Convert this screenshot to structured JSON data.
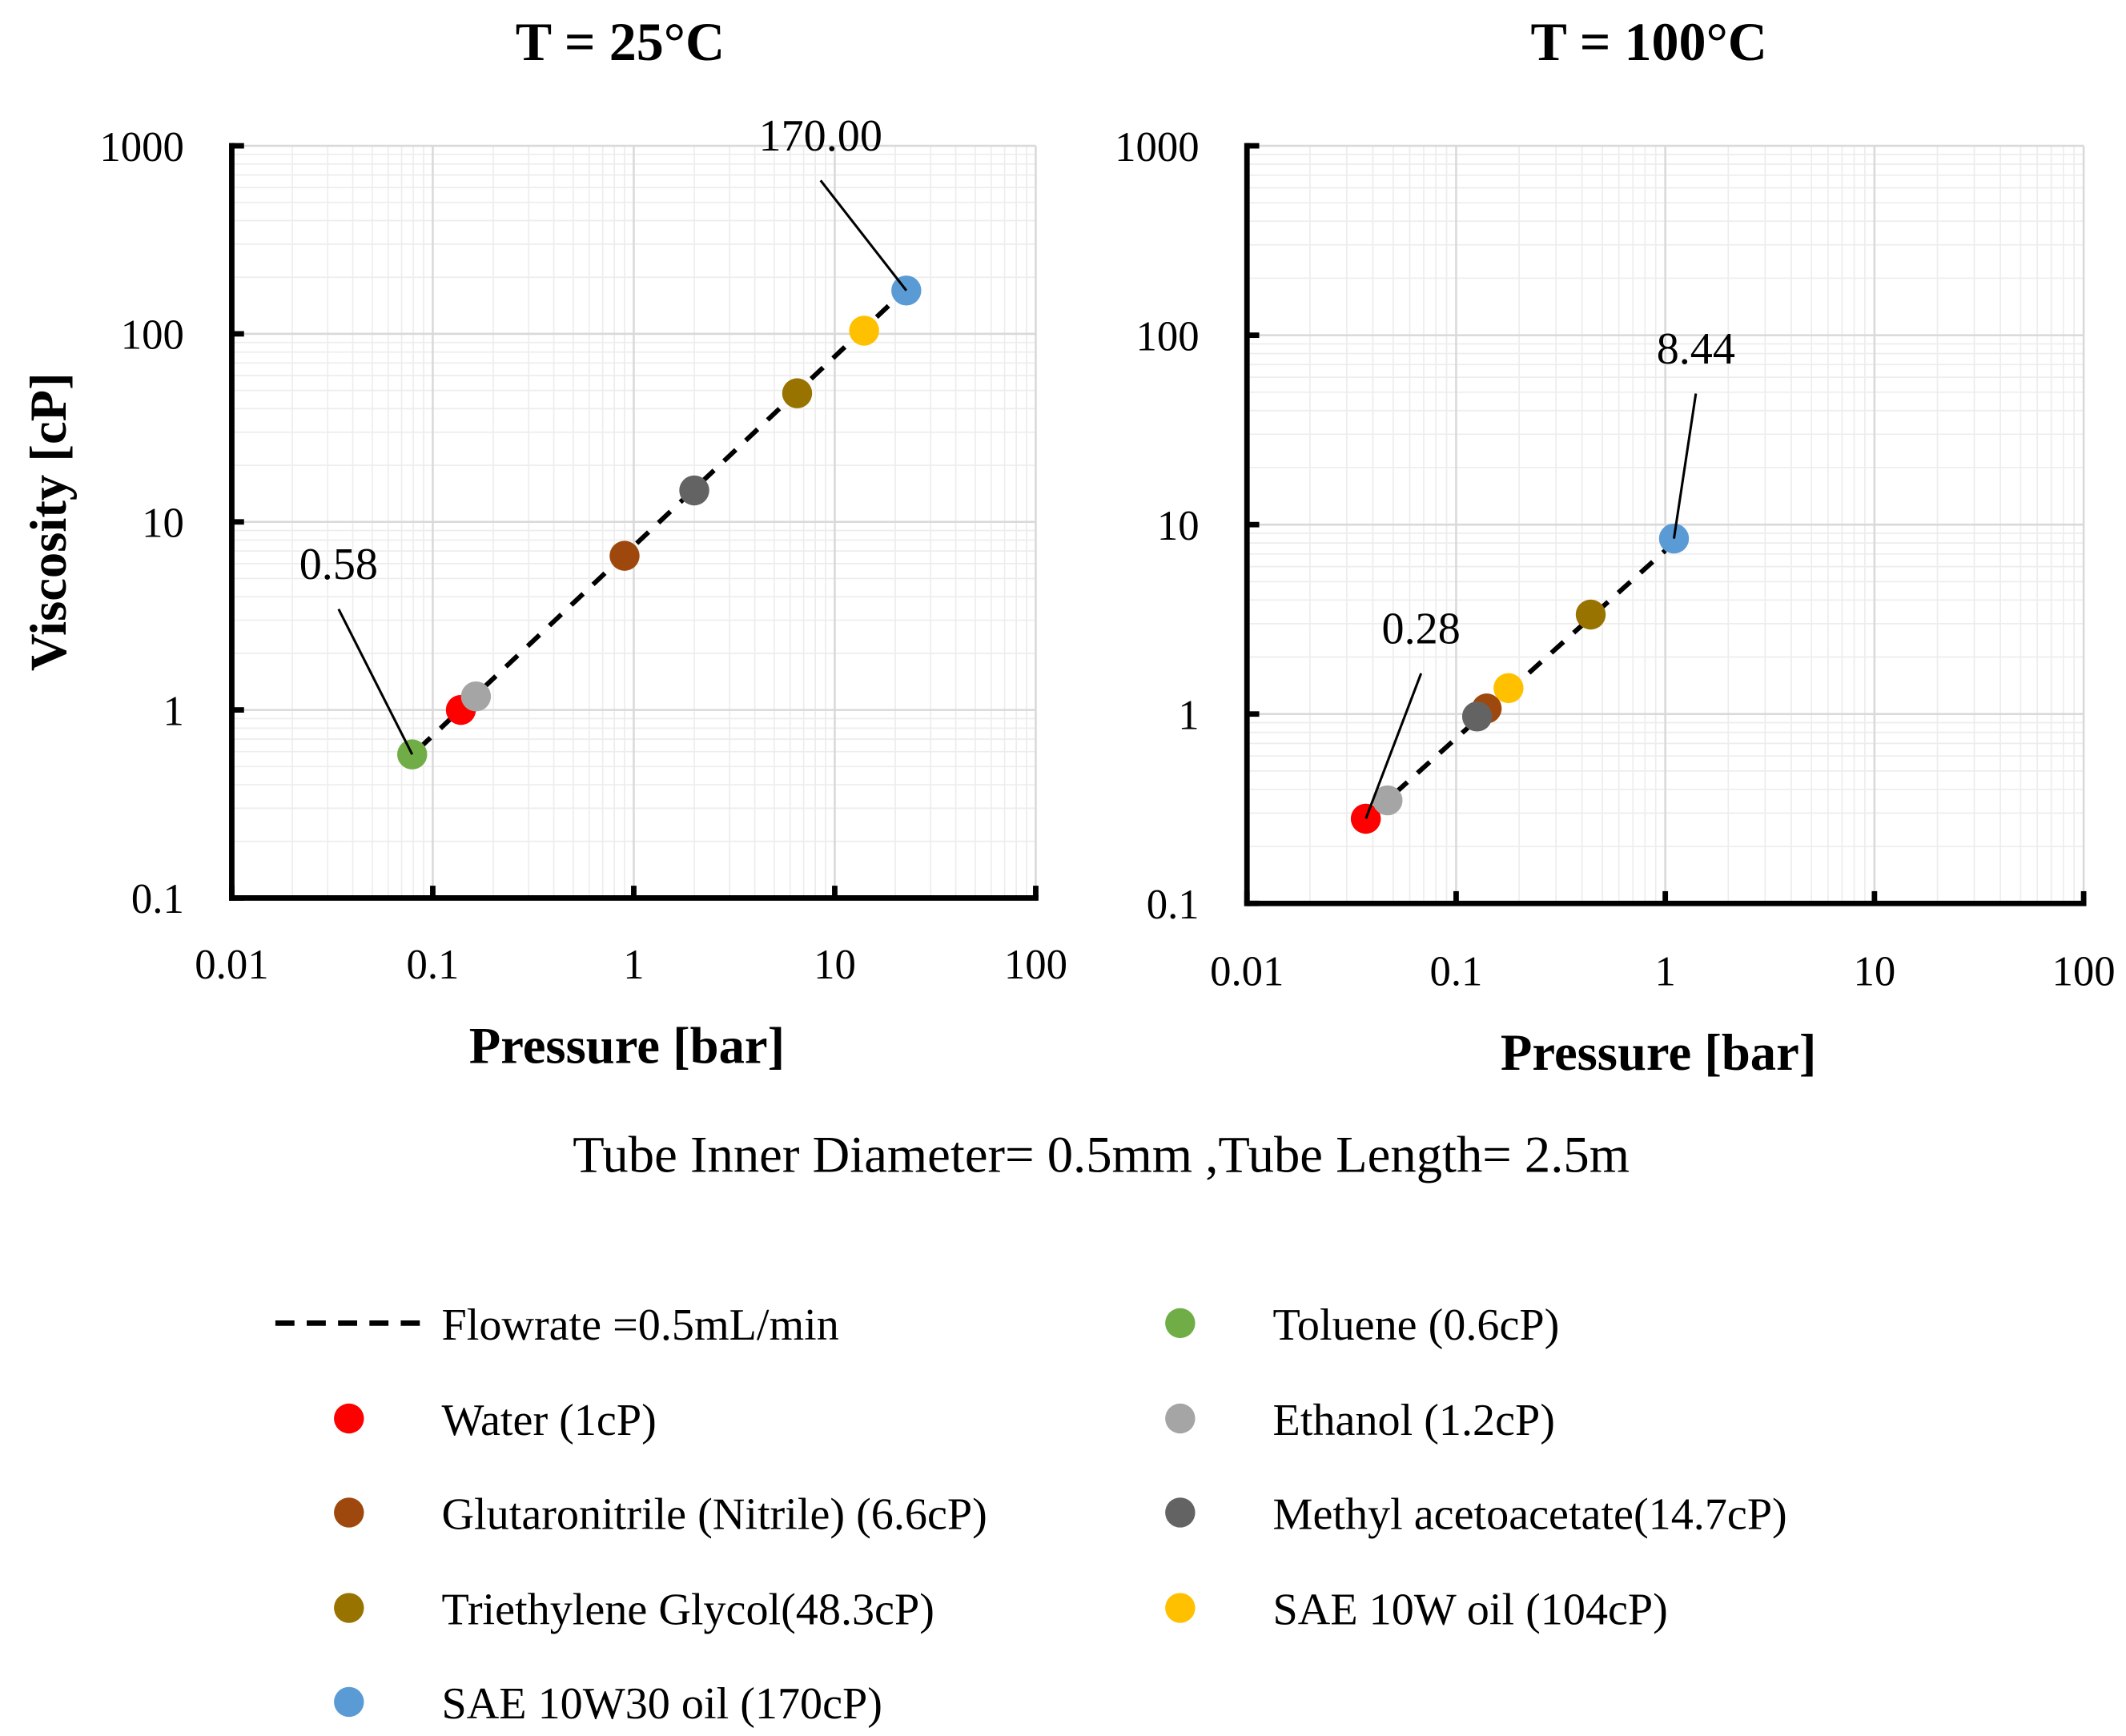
{
  "caption": "Tube Inner Diameter= 0.5mm ,Tube Length= 2.5m",
  "legend": {
    "line_label": "Flowrate =0.5mL/min",
    "items": [
      {
        "label": "Water (1cP)",
        "color": "#ff0000"
      },
      {
        "label": "Glutaronitrile (Nitrile) (6.6cP)",
        "color": "#9e480e"
      },
      {
        "label": "Triethylene Glycol(48.3cP)",
        "color": "#997300"
      },
      {
        "label": "SAE 10W30 oil (170cP)",
        "color": "#5b9bd5"
      },
      {
        "label": "Toluene (0.6cP)",
        "color": "#70ad47"
      },
      {
        "label": "Ethanol (1.2cP)",
        "color": "#a5a5a5"
      },
      {
        "label": "Methyl acetoacetate(14.7cP)",
        "color": "#636363"
      },
      {
        "label": "SAE 10W oil (104cP)",
        "color": "#ffc000"
      }
    ]
  },
  "chart_data": [
    {
      "type": "scatter",
      "title": "T = 25°C",
      "xlabel": "Pressure [bar]",
      "ylabel": "Viscosity [cP]",
      "xscale": "log",
      "yscale": "log",
      "xlim": [
        0.01,
        100
      ],
      "ylim": [
        0.1,
        1000
      ],
      "xticks": [
        "0.01",
        "0.1",
        "1",
        "10",
        "100"
      ],
      "yticks": [
        "0.1",
        "1",
        "10",
        "100",
        "1000"
      ],
      "grid": true,
      "series": [
        {
          "name": "Toluene (0.6cP)",
          "x": 0.079,
          "y": 0.58,
          "color": "#70ad47"
        },
        {
          "name": "Water (1cP)",
          "x": 0.138,
          "y": 1.0,
          "color": "#ff0000"
        },
        {
          "name": "Ethanol (1.2cP)",
          "x": 0.164,
          "y": 1.18,
          "color": "#a5a5a5"
        },
        {
          "name": "Glutaronitrile (Nitrile) (6.6cP)",
          "x": 0.9,
          "y": 6.6,
          "color": "#9e480e"
        },
        {
          "name": "Methyl acetoacetate(14.7cP)",
          "x": 2.0,
          "y": 14.7,
          "color": "#636363"
        },
        {
          "name": "Triethylene Glycol(48.3cP)",
          "x": 6.5,
          "y": 48.3,
          "color": "#997300"
        },
        {
          "name": "SAE 10W oil (104cP)",
          "x": 14.0,
          "y": 104,
          "color": "#ffc000"
        },
        {
          "name": "SAE 10W30 oil (170cP)",
          "x": 22.7,
          "y": 170,
          "color": "#5b9bd5"
        }
      ],
      "trendline": {
        "name": "Flowrate =0.5mL/min",
        "x": [
          0.085,
          21
        ],
        "y": [
          0.62,
          160
        ]
      },
      "annotations": [
        {
          "text": "0.58",
          "x": 0.079,
          "y": 0.58,
          "label_x": 0.034,
          "label_y": 4.2
        },
        {
          "text": "170.00",
          "x": 22.7,
          "y": 170,
          "label_x": 8.5,
          "label_y": 800
        }
      ]
    },
    {
      "type": "scatter",
      "title": "T = 100°C",
      "xlabel": "Pressure [bar]",
      "ylabel": "",
      "xscale": "log",
      "yscale": "log",
      "xlim": [
        0.01,
        100
      ],
      "ylim": [
        0.1,
        1000
      ],
      "xticks": [
        "0.01",
        "0.1",
        "1",
        "10",
        "100"
      ],
      "yticks": [
        "0.1",
        "1",
        "10",
        "100",
        "1000"
      ],
      "grid": true,
      "series": [
        {
          "name": "Toluene (0.6cP)",
          "x": 0.037,
          "y": 0.28,
          "color": "#70ad47"
        },
        {
          "name": "Water (1cP)",
          "x": 0.037,
          "y": 0.28,
          "color": "#ff0000"
        },
        {
          "name": "Ethanol (1.2cP)",
          "x": 0.047,
          "y": 0.35,
          "color": "#a5a5a5"
        },
        {
          "name": "Glutaronitrile (Nitrile) (6.6cP)",
          "x": 0.14,
          "y": 1.07,
          "color": "#9e480e"
        },
        {
          "name": "Methyl acetoacetate(14.7cP)",
          "x": 0.126,
          "y": 0.97,
          "color": "#636363"
        },
        {
          "name": "SAE 10W oil (104cP)",
          "x": 0.178,
          "y": 1.37,
          "color": "#ffc000"
        },
        {
          "name": "Triethylene Glycol(48.3cP)",
          "x": 0.44,
          "y": 3.35,
          "color": "#997300"
        },
        {
          "name": "SAE 10W30 oil (170cP)",
          "x": 1.1,
          "y": 8.44,
          "color": "#5b9bd5"
        }
      ],
      "trendline": {
        "name": "Flowrate =0.5mL/min",
        "x": [
          0.04,
          1.0
        ],
        "y": [
          0.3,
          7.3
        ]
      },
      "annotations": [
        {
          "text": "0.28",
          "x": 0.037,
          "y": 0.28,
          "label_x": 0.068,
          "label_y": 2.0
        },
        {
          "text": "8.44",
          "x": 1.1,
          "y": 8.44,
          "label_x": 1.4,
          "label_y": 60
        }
      ]
    }
  ]
}
